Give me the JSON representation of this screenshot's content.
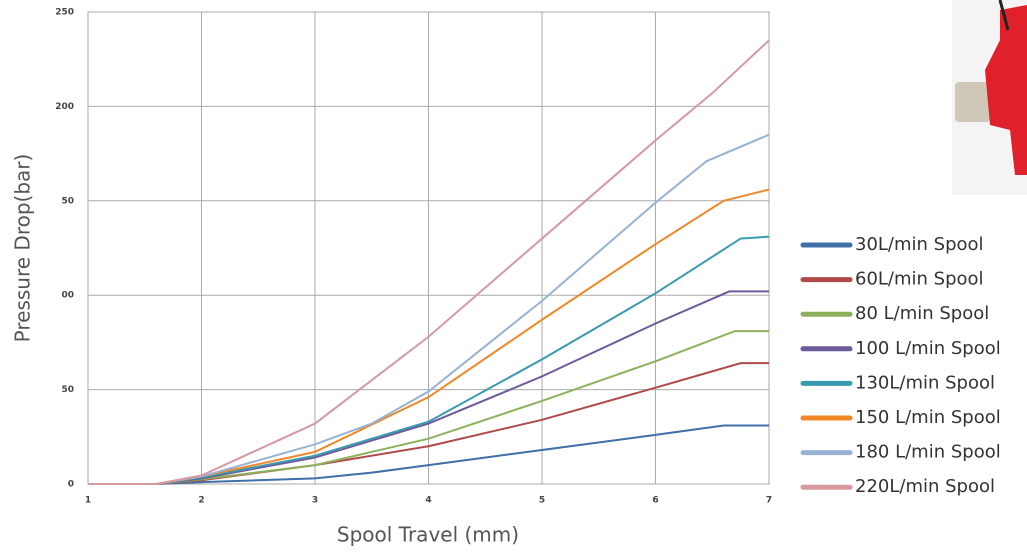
{
  "chart_data": {
    "type": "line",
    "x_label": "Spool Travel (mm)",
    "y_label": "Pressure Drop(bar)",
    "xlim": [
      1,
      7
    ],
    "xticks": [
      1,
      2,
      3,
      4,
      5,
      6,
      7
    ],
    "ylim": [
      0,
      250
    ],
    "yticks": [
      0,
      {
        "value": 50,
        "label": "50"
      },
      {
        "value": 100,
        "label": "00"
      },
      {
        "value": 150,
        "label": "50"
      },
      200,
      250
    ],
    "grid": true,
    "legend": "right",
    "series": [
      {
        "name": "30L/min Spool",
        "color": "#3f6fa8",
        "x": [
          1,
          1.6,
          2,
          3,
          3.5,
          4,
          5,
          6,
          6.6,
          7
        ],
        "values": [
          0,
          0,
          1,
          3,
          6,
          10,
          18,
          26,
          31,
          31
        ]
      },
      {
        "name": "60L/min Spool",
        "color": "#b04a4a",
        "x": [
          1,
          1.6,
          2,
          3,
          4,
          5,
          6,
          6.75,
          7
        ],
        "values": [
          0,
          0,
          2,
          10,
          20,
          34,
          51,
          64,
          64
        ]
      },
      {
        "name": "80 L/min Spool",
        "color": "#8db15a",
        "x": [
          1,
          1.6,
          2,
          3,
          4,
          5,
          6,
          6.7,
          7
        ],
        "values": [
          0,
          0,
          2.5,
          10,
          24,
          44,
          65,
          81,
          81
        ]
      },
      {
        "name": "100 L/min Spool",
        "color": "#6e5a9c",
        "x": [
          1,
          1.6,
          2,
          3,
          4,
          5,
          6,
          6.65,
          7
        ],
        "values": [
          0,
          0,
          3,
          14,
          32,
          57,
          85,
          102,
          102
        ]
      },
      {
        "name": "130L/min Spool",
        "color": "#3a9ab0",
        "x": [
          1,
          1.6,
          2,
          3,
          4,
          5,
          6,
          6.75,
          7
        ],
        "values": [
          0,
          0,
          3.5,
          15,
          33,
          66,
          101,
          130,
          131
        ]
      },
      {
        "name": "150 L/min Spool",
        "color": "#f0882a",
        "x": [
          1,
          1.6,
          2,
          3,
          4,
          5,
          6,
          6.6,
          7
        ],
        "values": [
          0,
          0,
          4,
          17,
          46,
          87,
          127,
          150,
          156
        ]
      },
      {
        "name": "180 L/min Spool",
        "color": "#98b2d4",
        "x": [
          1,
          1.6,
          2,
          3,
          3.5,
          4,
          5,
          6,
          6.45,
          7
        ],
        "values": [
          0,
          0,
          4,
          21,
          32,
          49,
          97,
          149,
          171,
          185
        ]
      },
      {
        "name": "220L/min Spool",
        "color": "#d69a9e",
        "x": [
          1,
          1.6,
          2,
          3,
          4,
          5,
          6,
          6.5,
          7
        ],
        "values": [
          0,
          0,
          4.5,
          32,
          78,
          130,
          182,
          207,
          235
        ]
      }
    ]
  }
}
